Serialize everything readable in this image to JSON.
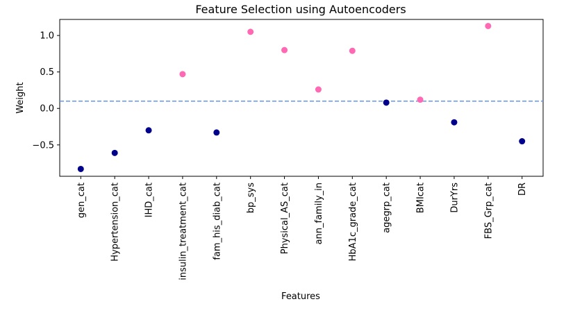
{
  "chart_data": {
    "type": "scatter",
    "title": "Feature Selection using Autoencoders",
    "xlabel": "Features",
    "ylabel": "Weight",
    "ylim": [
      -0.93,
      1.22
    ],
    "yticks": [
      -0.5,
      0.0,
      0.5,
      1.0
    ],
    "ytick_labels": [
      "−0.5",
      "0.0",
      "0.5",
      "1.0"
    ],
    "threshold": 0.1,
    "threshold_color": "#6495ed",
    "above_color": "#ff69b4",
    "below_color": "#00008b",
    "highlight_label_color": "#ff0000",
    "grid": false,
    "legend": "none",
    "categories": [
      {
        "label": "gen_cat",
        "value": -0.83,
        "highlight": false
      },
      {
        "label": "Hypertension_cat",
        "value": -0.61,
        "highlight": true
      },
      {
        "label": "IHD_cat",
        "value": -0.3,
        "highlight": false
      },
      {
        "label": "insulin_treatment_cat",
        "value": 0.47,
        "highlight": false
      },
      {
        "label": "fam_his_diab_cat",
        "value": -0.33,
        "highlight": false
      },
      {
        "label": "bp_sys",
        "value": 1.05,
        "highlight": false
      },
      {
        "label": "Physical_AS_cat",
        "value": 0.8,
        "highlight": true
      },
      {
        "label": "ann_family_in",
        "value": 0.26,
        "highlight": true
      },
      {
        "label": "HbA1c_grade_cat",
        "value": 0.79,
        "highlight": false
      },
      {
        "label": "agegrp_cat",
        "value": 0.08,
        "highlight": false
      },
      {
        "label": "BMIcat",
        "value": 0.12,
        "highlight": false
      },
      {
        "label": "DurYrs",
        "value": -0.19,
        "highlight": true
      },
      {
        "label": "FBS_Grp_cat",
        "value": 1.13,
        "highlight": false
      },
      {
        "label": "DR",
        "value": -0.45,
        "highlight": false
      }
    ]
  }
}
